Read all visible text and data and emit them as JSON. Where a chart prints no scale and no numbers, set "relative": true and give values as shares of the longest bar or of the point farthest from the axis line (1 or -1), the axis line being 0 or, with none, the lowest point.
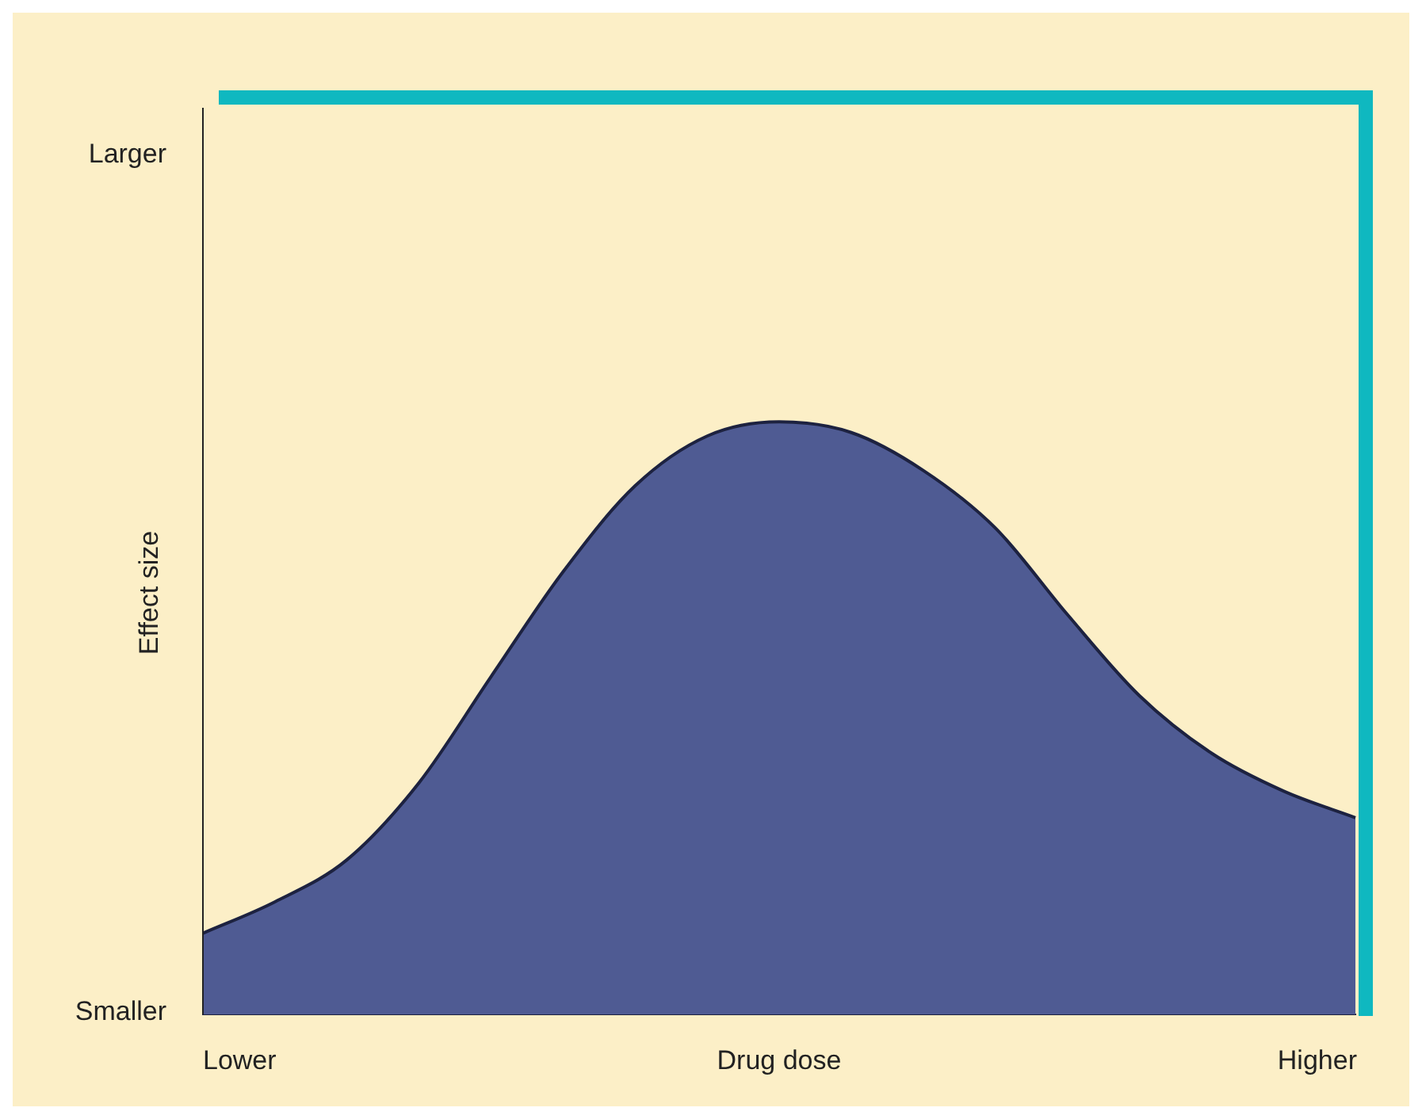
{
  "chart_data": {
    "type": "area",
    "relative": true,
    "xlabel": "Drug dose",
    "ylabel": "Effect size",
    "categories": [
      null,
      null,
      null,
      null,
      null,
      null,
      null,
      null,
      null,
      null,
      null,
      null,
      null,
      null,
      null,
      null,
      null
    ],
    "series": [
      {
        "color": "#4f5b93",
        "values": [
          0.137,
          0.19,
          0.261,
          0.391,
          0.57,
          0.747,
          0.892,
          0.976,
          1,
          0.982,
          0.918,
          0.821,
          0.675,
          0.538,
          0.441,
          0.377,
          0.332
        ]
      }
    ],
    "annotations": [
      "Larger",
      "Smaller",
      "Lower",
      "Higher"
    ],
    "legend": false
  }
}
